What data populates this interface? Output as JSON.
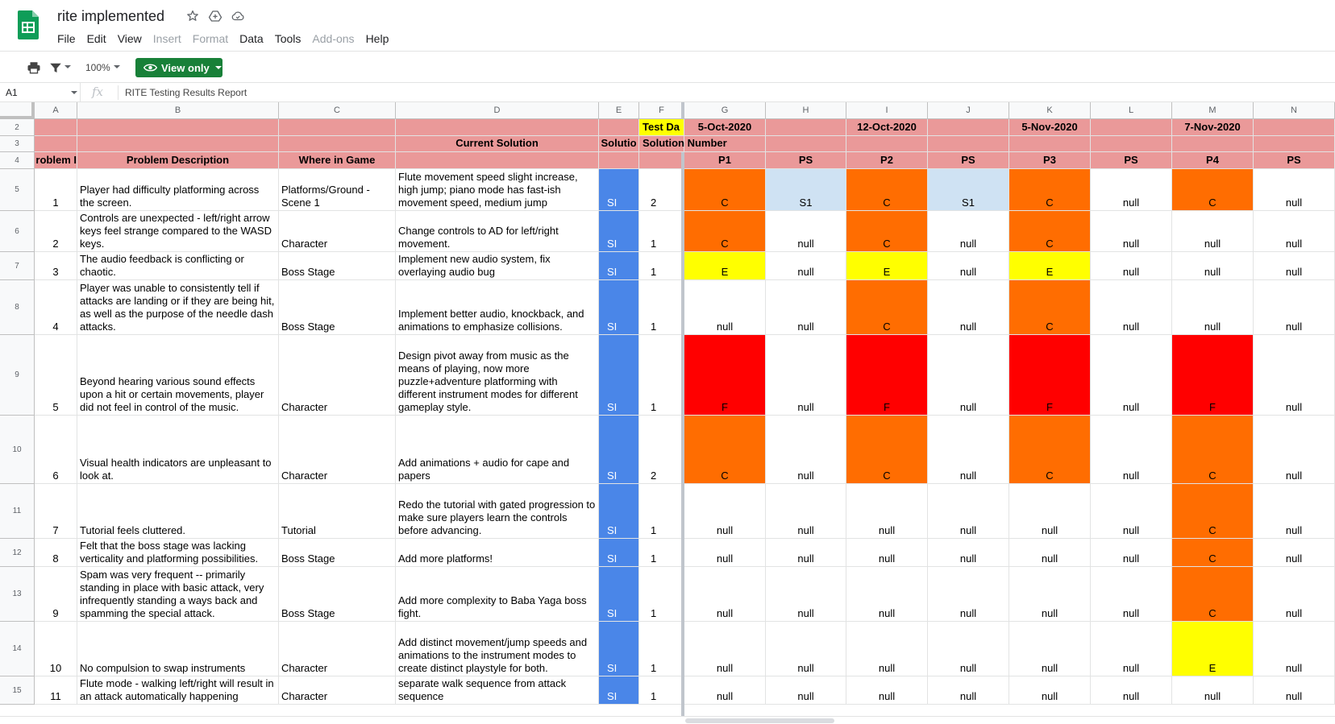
{
  "header": {
    "title": "rite implemented",
    "menus": [
      {
        "label": "File",
        "enabled": true
      },
      {
        "label": "Edit",
        "enabled": true
      },
      {
        "label": "View",
        "enabled": true
      },
      {
        "label": "Insert",
        "enabled": false
      },
      {
        "label": "Format",
        "enabled": false
      },
      {
        "label": "Data",
        "enabled": true
      },
      {
        "label": "Tools",
        "enabled": true
      },
      {
        "label": "Add-ons",
        "enabled": false
      },
      {
        "label": "Help",
        "enabled": true
      }
    ]
  },
  "toolbar": {
    "zoom": "100%",
    "view_only_label": "View only",
    "accent": "#188038"
  },
  "formula_bar": {
    "name_box": "A1",
    "value": "RITE Testing Results Report"
  },
  "grid": {
    "columns": [
      "A",
      "B",
      "C",
      "D",
      "E",
      "F",
      "G",
      "H",
      "I",
      "J",
      "K",
      "L",
      "M",
      "N"
    ],
    "header_rows": {
      "row2": {
        "F": "Test Da",
        "G": "5-Oct-2020",
        "I": "12-Oct-2020",
        "K": "5-Nov-2020",
        "M": "7-Nov-2020"
      },
      "row3": {
        "D": "Current Solution",
        "E": "Solutio",
        "F": "Solution Number"
      },
      "row4": {
        "A": "roblem I",
        "B": "Problem Description",
        "C": "Where in Game",
        "G": "P1",
        "H": "PS",
        "I": "P2",
        "J": "PS",
        "K": "P3",
        "L": "PS",
        "M": "P4",
        "N": "PS"
      }
    },
    "rows": [
      {
        "num": "5",
        "id": "1",
        "desc": "Player had difficulty platforming across the screen.",
        "where": "Platforms/Ground - Scene 1",
        "solution": "Flute movement speed slight increase, high jump; piano mode has fast-ish movement speed, medium jump",
        "status": "SI",
        "sol_num": "2",
        "results": [
          "C",
          "S1",
          "C",
          "S1",
          "C",
          "null",
          "C",
          "null"
        ]
      },
      {
        "num": "6",
        "id": "2",
        "desc": "Controls are unexpected - left/right arrow keys feel strange compared to the WASD keys.",
        "where": "Character",
        "solution": "Change controls to AD for left/right movement.",
        "status": "SI",
        "sol_num": "1",
        "results": [
          "C",
          "null",
          "C",
          "null",
          "C",
          "null",
          "null",
          "null"
        ]
      },
      {
        "num": "7",
        "id": "3",
        "desc": "The audio feedback is conflicting or chaotic.",
        "where": "Boss Stage",
        "solution": "Implement new audio system, fix overlaying audio bug",
        "status": "SI",
        "sol_num": "1",
        "results": [
          "E",
          "null",
          "E",
          "null",
          "E",
          "null",
          "null",
          "null"
        ]
      },
      {
        "num": "8",
        "id": "4",
        "desc": "Player was unable to consistently tell if attacks are landing or if they are being hit, as well as the purpose of the needle dash attacks.",
        "where": "Boss Stage",
        "solution": "Implement better audio, knockback, and animations to emphasize collisions.",
        "status": "SI",
        "sol_num": "1",
        "results": [
          "null",
          "null",
          "C",
          "null",
          "C",
          "null",
          "null",
          "null"
        ]
      },
      {
        "num": "9",
        "id": "5",
        "desc": "Beyond hearing various sound effects upon a hit or certain movements, player did not feel in control of the music.",
        "where": "Character",
        "solution": "Design pivot away from music as the means of playing, now more puzzle+adventure platforming with different instrument modes for different gameplay style.",
        "status": "SI",
        "sol_num": "1",
        "results": [
          "F",
          "null",
          "F",
          "null",
          "F",
          "null",
          "F",
          "null"
        ]
      },
      {
        "num": "10",
        "id": "6",
        "desc": "Visual health indicators are unpleasant to look at.",
        "where": "Character",
        "solution": "Add animations + audio for cape and papers",
        "status": "SI",
        "sol_num": "2",
        "results": [
          "C",
          "null",
          "C",
          "null",
          "C",
          "null",
          "C",
          "null"
        ]
      },
      {
        "num": "11",
        "id": "7",
        "desc": "Tutorial feels cluttered.",
        "where": "Tutorial",
        "solution": "Redo the tutorial with gated progression to make sure players learn the controls before advancing.",
        "status": "SI",
        "sol_num": "1",
        "results": [
          "null",
          "null",
          "null",
          "null",
          "null",
          "null",
          "C",
          "null"
        ]
      },
      {
        "num": "12",
        "id": "8",
        "desc": "Felt that the boss stage was lacking verticality and platforming possibilities.",
        "where": "Boss Stage",
        "solution": "Add more platforms!",
        "status": "SI",
        "sol_num": "1",
        "results": [
          "null",
          "null",
          "null",
          "null",
          "null",
          "null",
          "C",
          "null"
        ]
      },
      {
        "num": "13",
        "id": "9",
        "desc": "Spam was very frequent -- primarily standing in place with basic attack, very infrequently standing a ways back and spamming the special attack.",
        "where": "Boss Stage",
        "solution": "Add more complexity to Baba Yaga boss fight.",
        "status": "SI",
        "sol_num": "1",
        "results": [
          "null",
          "null",
          "null",
          "null",
          "null",
          "null",
          "C",
          "null"
        ]
      },
      {
        "num": "14",
        "id": "10",
        "desc": "No compulsion to swap instruments",
        "where": "Character",
        "solution": "Add distinct movement/jump speeds and animations to the instrument modes to create distinct playstyle for both.",
        "status": "SI",
        "sol_num": "1",
        "results": [
          "null",
          "null",
          "null",
          "null",
          "null",
          "null",
          "E",
          "null"
        ]
      },
      {
        "num": "15",
        "id": "11",
        "desc": "Flute mode - walking left/right will result in an attack automatically happening",
        "where": "Character",
        "solution": "separate walk sequence from attack sequence",
        "status": "SI",
        "sol_num": "1",
        "results": [
          "null",
          "null",
          "null",
          "null",
          "null",
          "null",
          "null",
          "null"
        ]
      }
    ],
    "colors": {
      "header_band": "#ea9999",
      "date_highlight": "#ffff00",
      "status_blue": "#4a86e8",
      "C": "#ff6d01",
      "E": "#ffff00",
      "F": "#ff0000",
      "S1": "#cfe2f3"
    }
  }
}
